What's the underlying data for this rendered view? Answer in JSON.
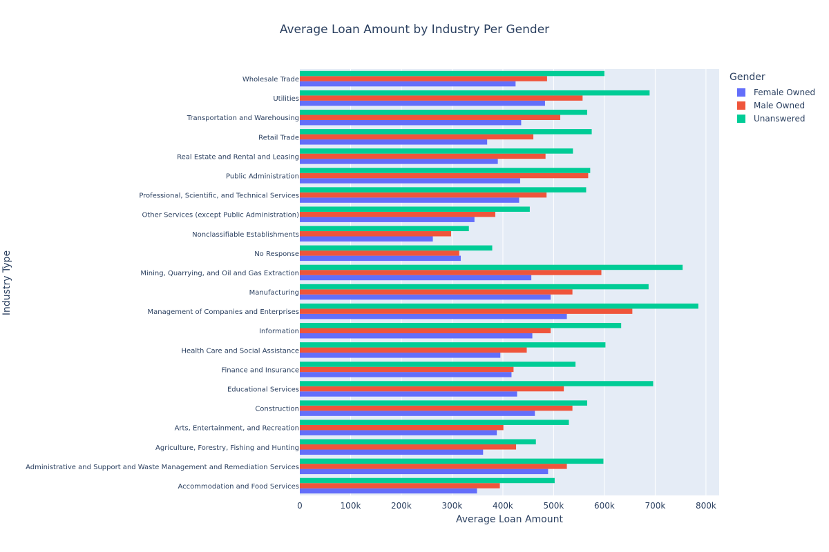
{
  "chart_data": {
    "type": "bar",
    "orientation": "horizontal",
    "title": "Average Loan Amount by Industry Per Gender",
    "xlabel": "Average Loan Amount",
    "ylabel": "Industry Type",
    "legend_title": "Gender",
    "legend_position": "right",
    "xlim": [
      0,
      826000
    ],
    "x_ticks": [
      0,
      100000,
      200000,
      300000,
      400000,
      500000,
      600000,
      700000,
      800000
    ],
    "x_tick_labels": [
      "0",
      "100k",
      "200k",
      "300k",
      "400k",
      "500k",
      "600k",
      "700k",
      "800k"
    ],
    "grid": true,
    "categories": [
      "Accommodation and Food Services",
      "Administrative and Support and Waste Management and Remediation Services",
      "Agriculture, Forestry, Fishing and Hunting",
      "Arts, Entertainment, and Recreation",
      "Construction",
      "Educational Services",
      "Finance and Insurance",
      "Health Care and Social Assistance",
      "Information",
      "Management of Companies and Enterprises",
      "Manufacturing",
      "Mining, Quarrying, and Oil and Gas Extraction",
      "No Response",
      "Nonclassifiable Establishments",
      "Other Services (except Public Administration)",
      "Professional, Scientific, and Technical Services",
      "Public Administration",
      "Real Estate and Rental and Leasing",
      "Retail Trade",
      "Transportation and Warehousing",
      "Utilities",
      "Wholesale Trade"
    ],
    "series": [
      {
        "name": "Female Owned",
        "color": "#636efa",
        "values": [
          349000,
          489000,
          361000,
          388000,
          463000,
          428000,
          417000,
          395000,
          458000,
          526000,
          494000,
          456000,
          317000,
          262000,
          344000,
          432000,
          434000,
          390000,
          369000,
          436000,
          483000,
          425000
        ]
      },
      {
        "name": "Male Owned",
        "color": "#ef553b",
        "values": [
          394000,
          526000,
          426000,
          401000,
          537000,
          520000,
          421000,
          447000,
          494000,
          655000,
          537000,
          594000,
          314000,
          298000,
          385000,
          486000,
          568000,
          484000,
          460000,
          513000,
          557000,
          487000
        ]
      },
      {
        "name": "Unanswered",
        "color": "#00cc96",
        "values": [
          502000,
          598000,
          465000,
          530000,
          566000,
          696000,
          543000,
          602000,
          633000,
          785000,
          687000,
          754000,
          379000,
          333000,
          453000,
          564000,
          572000,
          538000,
          575000,
          566000,
          689000,
          600000
        ]
      }
    ]
  }
}
